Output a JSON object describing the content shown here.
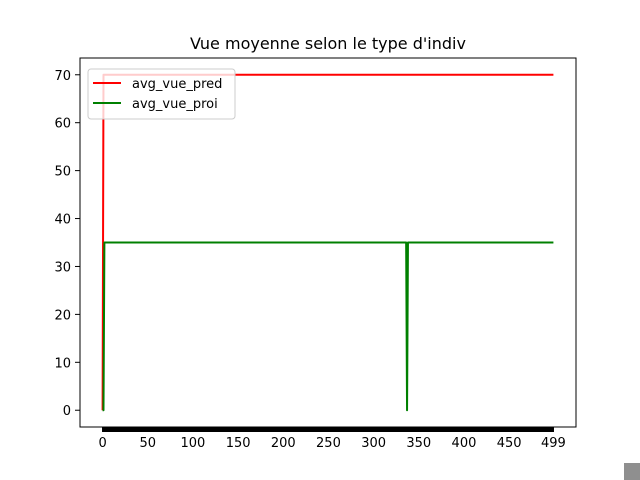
{
  "chart_data": {
    "type": "line",
    "title": "Vue moyenne selon le type d'indiv",
    "xlabel": "",
    "ylabel": "",
    "xlim": [
      -25,
      524
    ],
    "ylim": [
      -3.5,
      73.5
    ],
    "xticks": [
      0,
      50,
      100,
      150,
      200,
      250,
      300,
      350,
      400,
      450,
      499
    ],
    "yticks": [
      0,
      10,
      20,
      30,
      40,
      50,
      60,
      70
    ],
    "grid": false,
    "legend": "top-left",
    "series": [
      {
        "name": "avg_vue_pred",
        "color": "#ff0000",
        "x": [
          0,
          1,
          2,
          499
        ],
        "y": [
          0,
          70,
          70,
          70
        ]
      },
      {
        "name": "avg_vue_proi",
        "color": "#008000",
        "x": [
          0,
          1,
          2,
          335,
          336,
          337,
          338,
          339,
          499
        ],
        "y": [
          0,
          0,
          35,
          35,
          35,
          0,
          35,
          35,
          35
        ]
      }
    ]
  }
}
